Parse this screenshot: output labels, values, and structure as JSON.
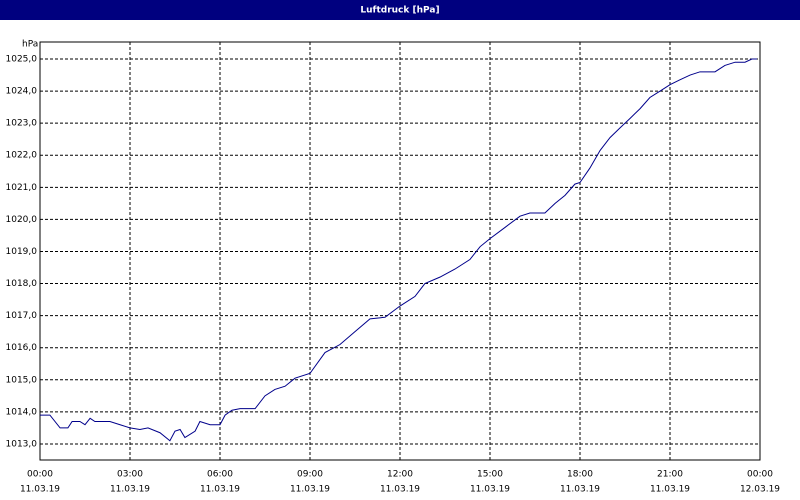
{
  "chart_data": {
    "type": "line",
    "title": "Luftdruck [hPa]",
    "y_label": "hPa",
    "x": [
      0,
      0.33,
      0.67,
      0.93,
      1.07,
      1.33,
      1.5,
      1.67,
      1.83,
      2.33,
      2.67,
      3,
      3.33,
      3.6,
      4,
      4.33,
      4.5,
      4.67,
      4.83,
      5.17,
      5.33,
      5.67,
      6,
      6.17,
      6.4,
      6.67,
      7.17,
      7.5,
      7.83,
      8.17,
      8.5,
      9,
      9.5,
      10,
      10.5,
      11,
      11.5,
      12,
      12.5,
      12.83,
      13.33,
      13.83,
      14.33,
      14.67,
      15,
      15.5,
      16,
      16.33,
      16.83,
      17.17,
      17.5,
      17.83,
      18,
      18.33,
      18.67,
      19,
      19.33,
      19.67,
      20,
      20.33,
      20.67,
      21,
      21.33,
      21.67,
      22,
      22.5,
      22.83,
      23.17,
      23.5,
      23.73,
      23.9
    ],
    "series": [
      {
        "name": "Luftdruck",
        "color": "#00008b",
        "values": [
          1013.9,
          1013.9,
          1013.5,
          1013.5,
          1013.7,
          1013.7,
          1013.6,
          1013.8,
          1013.7,
          1013.7,
          1013.6,
          1013.5,
          1013.45,
          1013.5,
          1013.35,
          1013.1,
          1013.4,
          1013.45,
          1013.2,
          1013.4,
          1013.7,
          1013.6,
          1013.6,
          1013.9,
          1014.05,
          1014.1,
          1014.1,
          1014.5,
          1014.7,
          1014.8,
          1015.05,
          1015.2,
          1015.85,
          1016.1,
          1016.5,
          1016.9,
          1016.95,
          1017.3,
          1017.6,
          1018.0,
          1018.2,
          1018.45,
          1018.75,
          1019.15,
          1019.4,
          1019.75,
          1020.1,
          1020.2,
          1020.2,
          1020.5,
          1020.75,
          1021.1,
          1021.15,
          1021.6,
          1022.15,
          1022.55,
          1022.85,
          1023.15,
          1023.45,
          1023.8,
          1024.0,
          1024.2,
          1024.35,
          1024.5,
          1024.6,
          1024.6,
          1024.8,
          1024.9,
          1024.9,
          1025.0,
          1025.0
        ]
      }
    ],
    "xlim": [
      0,
      24
    ],
    "xticks": [
      {
        "value": 0,
        "label": "00:00"
      },
      {
        "value": 3,
        "label": "03:00"
      },
      {
        "value": 6,
        "label": "06:00"
      },
      {
        "value": 9,
        "label": "09:00"
      },
      {
        "value": 12,
        "label": "12:00"
      },
      {
        "value": 15,
        "label": "15:00"
      },
      {
        "value": 18,
        "label": "18:00"
      },
      {
        "value": 21,
        "label": "21:00"
      },
      {
        "value": 24,
        "label": "00:00"
      }
    ],
    "xtick_dates": [
      "11.03.19",
      "11.03.19",
      "11.03.19",
      "11.03.19",
      "11.03.19",
      "11.03.19",
      "11.03.19",
      "11.03.19",
      "12.03.19"
    ],
    "ylim": [
      1012.5,
      1025.53
    ],
    "yticks": [
      {
        "value": 1013,
        "label": "1013,0"
      },
      {
        "value": 1014,
        "label": "1014,0"
      },
      {
        "value": 1015,
        "label": "1015,0"
      },
      {
        "value": 1016,
        "label": "1016,0"
      },
      {
        "value": 1017,
        "label": "1017,0"
      },
      {
        "value": 1018,
        "label": "1018,0"
      },
      {
        "value": 1019,
        "label": "1019,0"
      },
      {
        "value": 1020,
        "label": "1020,0"
      },
      {
        "value": 1021,
        "label": "1021,0"
      },
      {
        "value": 1022,
        "label": "1022,0"
      },
      {
        "value": 1023,
        "label": "1023,0"
      },
      {
        "value": 1024,
        "label": "1024,0"
      },
      {
        "value": 1025,
        "label": "1025,0"
      }
    ],
    "grid": true
  }
}
